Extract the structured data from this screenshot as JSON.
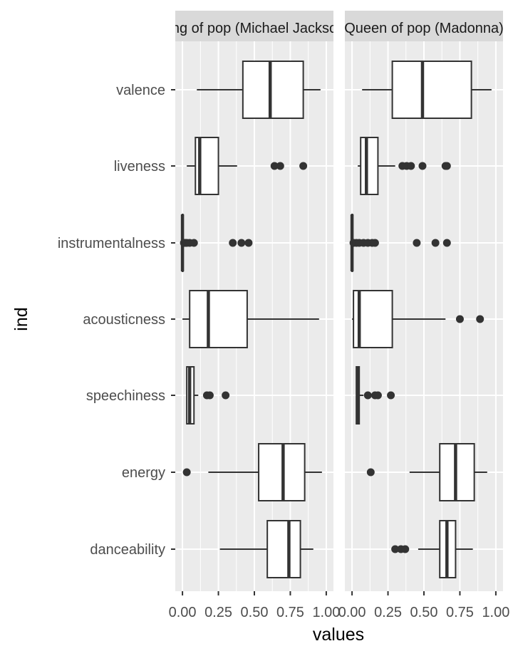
{
  "chart_data": {
    "type": "boxplot",
    "orientation": "horizontal",
    "xlabel": "values",
    "ylabel": "ind",
    "xlim": [
      -0.05,
      1.05
    ],
    "x_ticks": [
      0,
      0.25,
      0.5,
      0.75,
      1
    ],
    "x_tick_labels": [
      "0.00",
      "0.25",
      "0.50",
      "0.75",
      "1.00"
    ],
    "categories": [
      "valence",
      "liveness",
      "instrumentalness",
      "acousticness",
      "speechiness",
      "energy",
      "danceability"
    ],
    "colors": {
      "panel_bg": "#ebebeb",
      "grid": "#ffffff",
      "strip_bg": "#d9d9d9",
      "box_fill": "#ffffff",
      "box_line": "#333333"
    },
    "facets": [
      {
        "label": "King of pop (Michael Jackson)",
        "label_visible": "of pop (Michael Jack",
        "boxes": [
          {
            "category": "valence",
            "whisker_low": 0.1,
            "q1": 0.42,
            "median": 0.61,
            "q3": 0.84,
            "whisker_high": 0.96,
            "outliers": []
          },
          {
            "category": "liveness",
            "whisker_low": 0.03,
            "q1": 0.09,
            "median": 0.12,
            "q3": 0.25,
            "whisker_high": 0.38,
            "outliers": [
              0.64,
              0.68,
              0.84
            ]
          },
          {
            "category": "instrumentalness",
            "whisker_low": 0.0,
            "q1": 0.0,
            "median": 0.0,
            "q3": 0.0,
            "whisker_high": 0.0,
            "outliers": [
              0.01,
              0.02,
              0.03,
              0.05,
              0.08,
              0.35,
              0.41,
              0.46
            ]
          },
          {
            "category": "acousticness",
            "whisker_low": 0.0,
            "q1": 0.05,
            "median": 0.18,
            "q3": 0.45,
            "whisker_high": 0.95,
            "outliers": []
          },
          {
            "category": "speechiness",
            "whisker_low": 0.03,
            "q1": 0.03,
            "median": 0.05,
            "q3": 0.08,
            "whisker_high": 0.11,
            "outliers": [
              0.17,
              0.19,
              0.3
            ]
          },
          {
            "category": "energy",
            "whisker_low": 0.18,
            "q1": 0.53,
            "median": 0.7,
            "q3": 0.85,
            "whisker_high": 0.97,
            "outliers": [
              0.03
            ]
          },
          {
            "category": "danceability",
            "whisker_low": 0.26,
            "q1": 0.59,
            "median": 0.74,
            "q3": 0.82,
            "whisker_high": 0.91,
            "outliers": []
          }
        ]
      },
      {
        "label": "Queen of pop (Madonna)",
        "label_visible": "ueen of pop (Madonn",
        "boxes": [
          {
            "category": "valence",
            "whisker_low": 0.07,
            "q1": 0.28,
            "median": 0.49,
            "q3": 0.83,
            "whisker_high": 0.97,
            "outliers": []
          },
          {
            "category": "liveness",
            "whisker_low": 0.04,
            "q1": 0.06,
            "median": 0.1,
            "q3": 0.18,
            "whisker_high": 0.3,
            "outliers": [
              0.35,
              0.38,
              0.41,
              0.49,
              0.65,
              0.66
            ]
          },
          {
            "category": "instrumentalness",
            "whisker_low": 0.0,
            "q1": 0.0,
            "median": 0.0,
            "q3": 0.0,
            "whisker_high": 0.0,
            "outliers": [
              0.01,
              0.03,
              0.05,
              0.08,
              0.11,
              0.14,
              0.16,
              0.45,
              0.58,
              0.66
            ]
          },
          {
            "category": "acousticness",
            "whisker_low": 0.0,
            "q1": 0.01,
            "median": 0.05,
            "q3": 0.28,
            "whisker_high": 0.65,
            "outliers": [
              0.75,
              0.89
            ]
          },
          {
            "category": "speechiness",
            "whisker_low": 0.03,
            "q1": 0.03,
            "median": 0.04,
            "q3": 0.05,
            "whisker_high": 0.08,
            "outliers": [
              0.11,
              0.16,
              0.18,
              0.27
            ]
          },
          {
            "category": "energy",
            "whisker_low": 0.4,
            "q1": 0.61,
            "median": 0.72,
            "q3": 0.85,
            "whisker_high": 0.94,
            "outliers": [
              0.13
            ]
          },
          {
            "category": "danceability",
            "whisker_low": 0.46,
            "q1": 0.61,
            "median": 0.66,
            "q3": 0.72,
            "whisker_high": 0.84,
            "outliers": [
              0.3,
              0.34,
              0.37
            ]
          }
        ]
      }
    ]
  }
}
